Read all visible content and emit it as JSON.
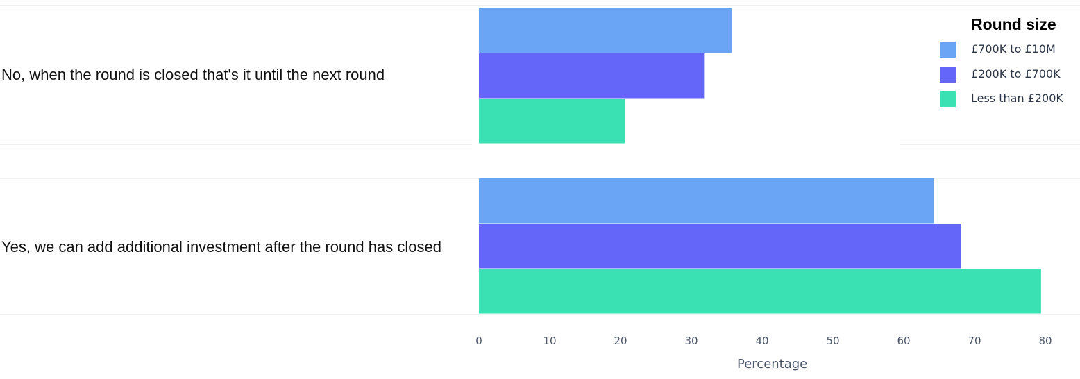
{
  "chart_data": {
    "type": "bar",
    "orientation": "horizontal",
    "categories": [
      "No, when the round is closed that's it until the next round",
      "Yes, we can add additional investment after the round has closed"
    ],
    "series": [
      {
        "name": "£700K to £10M",
        "color": "#6aa4f5",
        "values": [
          35.7,
          64.3
        ]
      },
      {
        "name": "£200K to £700K",
        "color": "#6366f8",
        "values": [
          31.9,
          68.1
        ]
      },
      {
        "name": "Less than £200K",
        "color": "#3ae2b3",
        "values": [
          20.6,
          79.4
        ]
      }
    ],
    "xlabel": "Percentage",
    "ylabel": "",
    "xlim": [
      0,
      80
    ],
    "xticks": [
      "0",
      "10",
      "20",
      "30",
      "40",
      "50",
      "60",
      "70",
      "80"
    ],
    "legend_title": "Round size",
    "legend_position": "top-right",
    "grid": false
  }
}
